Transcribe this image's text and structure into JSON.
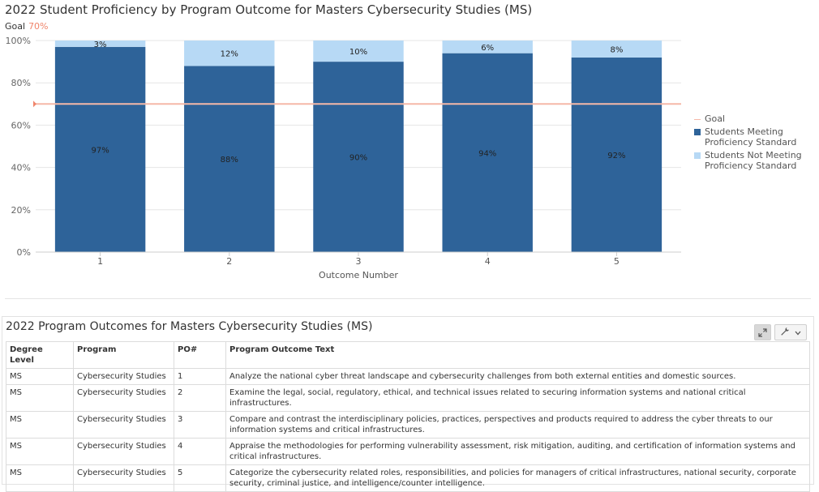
{
  "chart": {
    "title": "2022 Student Proficiency by Program Outcome for Masters Cybersecurity Studies (MS)",
    "goal_label": "Goal",
    "goal_value_text": "70%"
  },
  "chart_data": {
    "type": "bar",
    "stacked": true,
    "categories": [
      "1",
      "2",
      "3",
      "4",
      "5"
    ],
    "series": [
      {
        "name": "Students Meeting Proficiency Standard",
        "values": [
          97,
          88,
          90,
          94,
          92
        ],
        "color": "#2e6399"
      },
      {
        "name": "Students Not Meeting Proficiency Standard",
        "values": [
          3,
          12,
          10,
          6,
          8
        ],
        "color": "#b7d9f5"
      }
    ],
    "goal": {
      "name": "Goal",
      "value": 70,
      "color": "#f5b8a8"
    },
    "data_labels_meeting": [
      "97%",
      "88%",
      "90%",
      "94%",
      "92%"
    ],
    "data_labels_not_meeting": [
      "3%",
      "12%",
      "10%",
      "6%",
      "8%"
    ],
    "y_ticks": [
      "0%",
      "20%",
      "40%",
      "60%",
      "80%",
      "100%"
    ],
    "ylim": [
      0,
      100
    ],
    "xlabel": "Outcome Number",
    "ylabel": "",
    "legend_position": "right",
    "grid": true
  },
  "legend": {
    "goal": "Goal",
    "meeting": "Students Meeting Proficiency Standard",
    "not_meeting": "Students Not Meeting Proficiency Standard"
  },
  "table_panel": {
    "title": "2022 Program Outcomes for Masters Cybersecurity Studies (MS)",
    "tools": {
      "expand_icon": "expand-icon",
      "wrench_icon": "wrench-icon",
      "dropdown_icon": "chevron-down-icon"
    },
    "headers": [
      "Degree Level",
      "Program",
      "PO#",
      "Program Outcome Text"
    ],
    "rows": [
      {
        "degree": "MS",
        "program": "Cybersecurity Studies",
        "po": "1",
        "text": "Analyze the national cyber threat landscape and cybersecurity challenges from both external entities and domestic sources."
      },
      {
        "degree": "MS",
        "program": "Cybersecurity Studies",
        "po": "2",
        "text": "Examine the legal, social, regulatory, ethical, and technical issues related to securing information systems and national critical infrastructures."
      },
      {
        "degree": "MS",
        "program": "Cybersecurity Studies",
        "po": "3",
        "text": "Compare and contrast the interdisciplinary policies, practices, perspectives and products required to address the cyber threats to our information systems and critical infrastructures."
      },
      {
        "degree": "MS",
        "program": "Cybersecurity Studies",
        "po": "4",
        "text": "Appraise the methodologies for performing vulnerability assessment, risk mitigation, auditing, and certification of information systems and critical infrastructures."
      },
      {
        "degree": "MS",
        "program": "Cybersecurity Studies",
        "po": "5",
        "text": "Categorize the cybersecurity related roles, responsibilities, and policies for managers of critical infrastructures, national security, corporate security, criminal justice, and intelligence/counter intelligence."
      }
    ]
  }
}
